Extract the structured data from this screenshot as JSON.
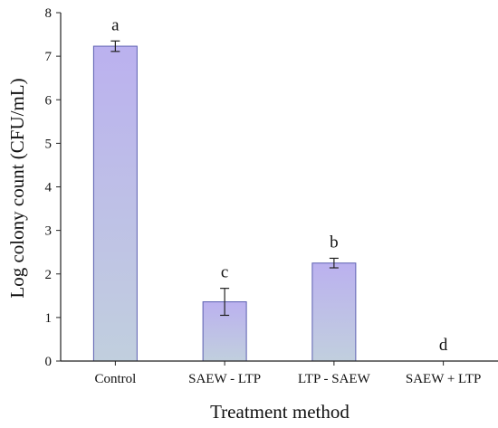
{
  "chart_data": {
    "type": "bar",
    "categories": [
      "Control",
      "SAEW - LTP",
      "LTP - SAEW",
      "SAEW + LTP"
    ],
    "values": [
      7.23,
      1.36,
      2.25,
      0
    ],
    "errors": [
      0.12,
      0.31,
      0.11,
      0
    ],
    "significance_letters": [
      "a",
      "c",
      "b",
      "d"
    ],
    "xlabel": "Treatment method",
    "ylabel": "Log colony count (CFU/mL)",
    "ylim": [
      0,
      8
    ],
    "yticks": [
      "0",
      "1",
      "2",
      "3",
      "4",
      "5",
      "6",
      "7",
      "8"
    ],
    "grid": false,
    "legend": "none",
    "colors": {
      "bar_top": "#bbb1ef",
      "bar_bottom": "#c1cfde",
      "bar_edge": "#5b5fb0",
      "axis": "#222222"
    }
  }
}
